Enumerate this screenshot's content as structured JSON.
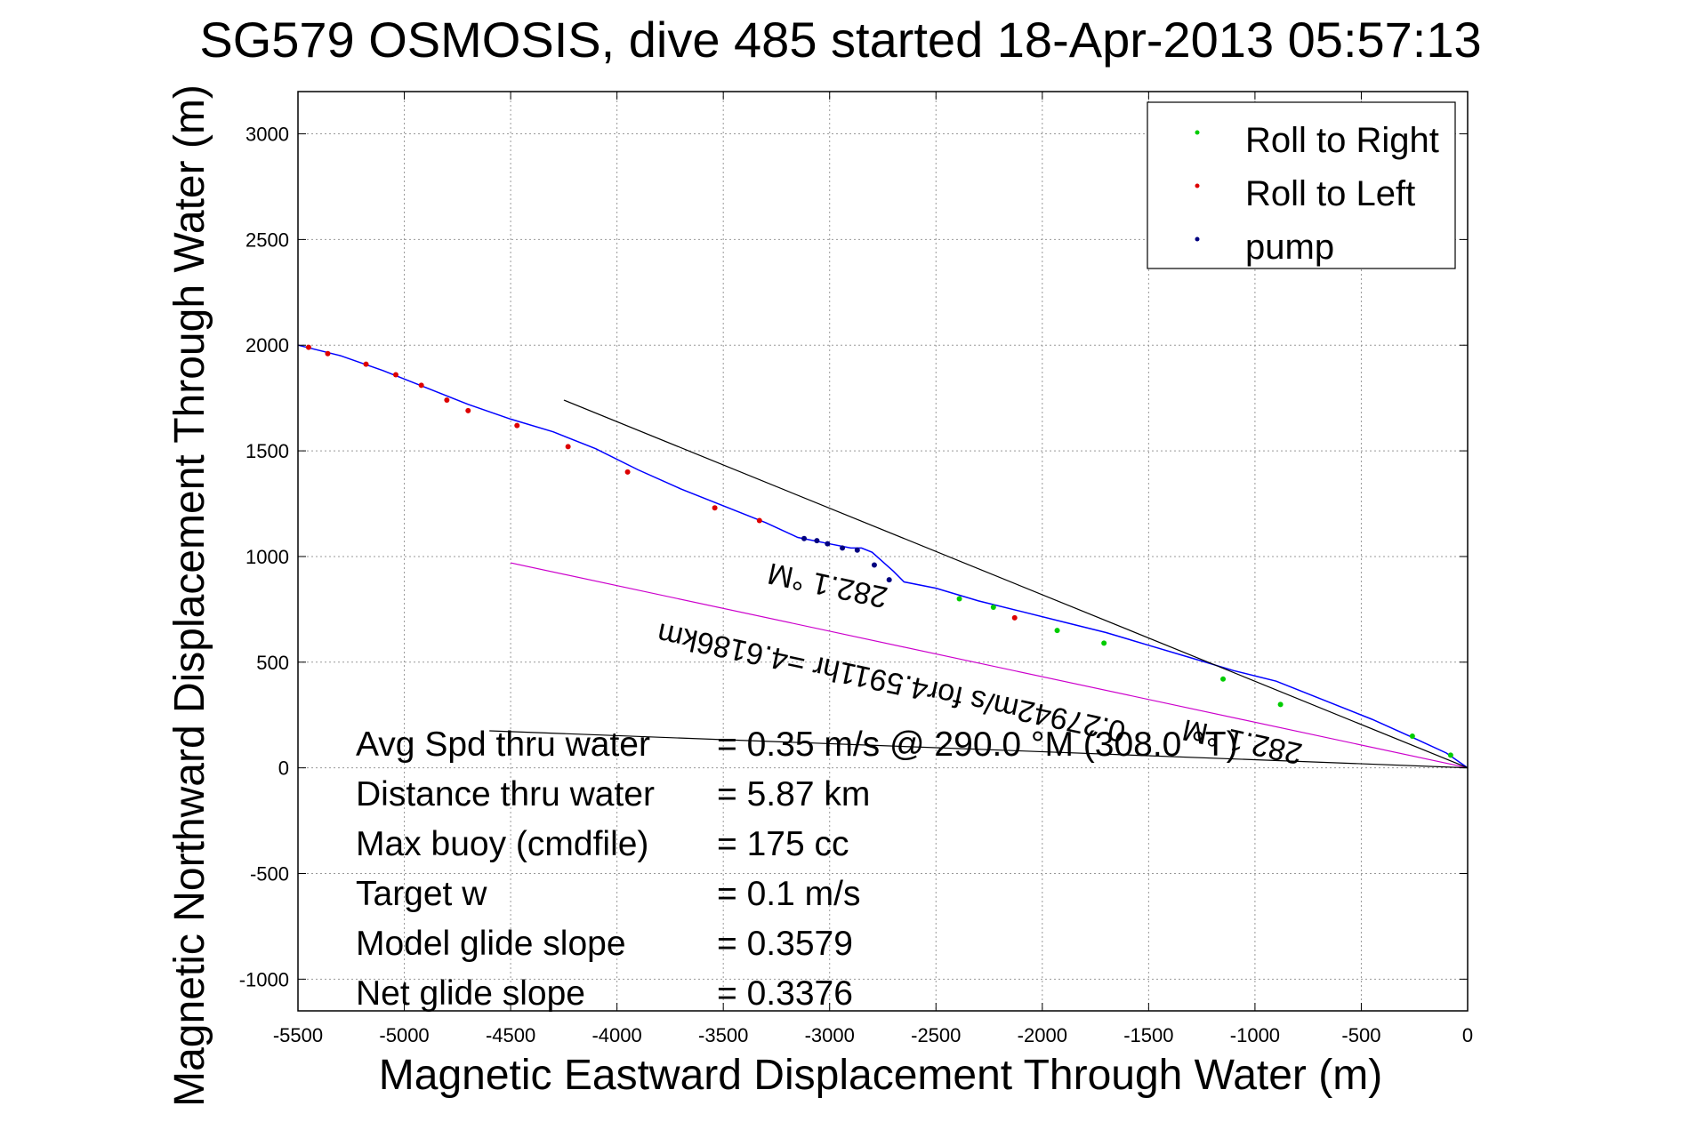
{
  "chart_data": {
    "type": "line",
    "title": "SG579 OSMOSIS, dive 485 started 18-Apr-2013 05:57:13",
    "xlabel": "Magnetic Eastward Displacement Through Water (m)",
    "ylabel": "Magnetic Northward Displacement Through Water (m)",
    "xlim": [
      -5500,
      0
    ],
    "ylim": [
      -1150,
      3200
    ],
    "xticks": [
      -5500,
      -5000,
      -4500,
      -4000,
      -3500,
      -3000,
      -2500,
      -2000,
      -1500,
      -1000,
      -500,
      0
    ],
    "xtick_labels": [
      "-5500",
      "-5000",
      "-4500",
      "-4000",
      "-3500",
      "-3000",
      "-2500",
      "-2000",
      "-1500",
      "-1000",
      "-500",
      "0"
    ],
    "yticks": [
      -1000,
      -500,
      0,
      500,
      1000,
      1500,
      2000,
      2500,
      3000
    ],
    "ytick_labels": [
      "-1000",
      "-500",
      "0",
      "500",
      "1000",
      "1500",
      "2000",
      "2500",
      "3000"
    ],
    "grid": true,
    "legend": {
      "placement": "top-right",
      "entries": [
        {
          "label": "Roll to Right",
          "color": "#00cc00"
        },
        {
          "label": "Roll to Left",
          "color": "#dd0000"
        },
        {
          "label": "pump",
          "color": "#000080"
        }
      ]
    },
    "series": [
      {
        "kind": "track",
        "color": "#0000ff",
        "x": [
          0,
          -100,
          -250,
          -450,
          -700,
          -900,
          -1100,
          -1300,
          -1500,
          -1700,
          -1900,
          -2100,
          -2300,
          -2500,
          -2650,
          -2700,
          -2800,
          -2850,
          -2900,
          -3000,
          -3150,
          -3300,
          -3500,
          -3700,
          -3900,
          -4100,
          -4300,
          -4500,
          -4700,
          -4900,
          -5100,
          -5300,
          -5500
        ],
        "y": [
          0,
          70,
          140,
          230,
          330,
          410,
          460,
          520,
          580,
          640,
          690,
          740,
          790,
          850,
          880,
          930,
          1020,
          1040,
          1040,
          1060,
          1090,
          1160,
          1240,
          1320,
          1410,
          1510,
          1590,
          1650,
          1720,
          1800,
          1880,
          1950,
          2000
        ]
      },
      {
        "kind": "heading-line",
        "color": "#cc00cc",
        "x": [
          0,
          -4500
        ],
        "y": [
          0,
          970
        ]
      },
      {
        "kind": "reference-line",
        "color": "#000000",
        "x": [
          0,
          -4250
        ],
        "y": [
          0,
          1740
        ]
      },
      {
        "kind": "reference-line",
        "color": "#000000",
        "x": [
          0,
          -4600
        ],
        "y": [
          0,
          175
        ]
      }
    ],
    "markers": {
      "roll_right": {
        "color": "#00cc00",
        "x": [
          -80,
          -260,
          -880,
          -1150,
          -1710,
          -1930,
          -2230,
          -2390
        ],
        "y": [
          60,
          150,
          300,
          420,
          590,
          650,
          760,
          800
        ]
      },
      "roll_left": {
        "color": "#dd0000",
        "x": [
          -2130,
          -3330,
          -3540,
          -3950,
          -4230,
          -4470,
          -4700,
          -4800,
          -4920,
          -5040,
          -5180,
          -5360,
          -5450
        ],
        "y": [
          710,
          1170,
          1230,
          1400,
          1520,
          1620,
          1690,
          1740,
          1810,
          1860,
          1910,
          1960,
          1990
        ]
      },
      "pump": {
        "color": "#000080",
        "x": [
          -2720,
          -2790,
          -2870,
          -2940,
          -3010,
          -3060,
          -3120
        ],
        "y": [
          890,
          960,
          1030,
          1040,
          1060,
          1075,
          1085
        ]
      }
    },
    "annotations": [
      {
        "text": "282.1 °M",
        "x": -3000,
        "y": 910,
        "rotation_deg": 192
      },
      {
        "text": "0.27942m/s for4.5911hr =4.6186km",
        "x": -2700,
        "y": 450,
        "rotation_deg": 192
      },
      {
        "text": "282.1 °M",
        "x": -1050,
        "y": 170,
        "rotation_deg": 192
      }
    ],
    "stats": [
      {
        "label": "Avg Spd thru water",
        "value": "=  0.35 m/s @ 290.0 °M (308.0 °T)"
      },
      {
        "label": "Distance thru water",
        "value": "=  5.87 km"
      },
      {
        "label": "Max buoy (cmdfile)",
        "value": "= 175 cc"
      },
      {
        "label": "Target w",
        "value": "= 0.1 m/s"
      },
      {
        "label": "Model glide slope",
        "value": "= 0.3579"
      },
      {
        "label": "Net glide slope",
        "value": "= 0.3376"
      }
    ]
  }
}
